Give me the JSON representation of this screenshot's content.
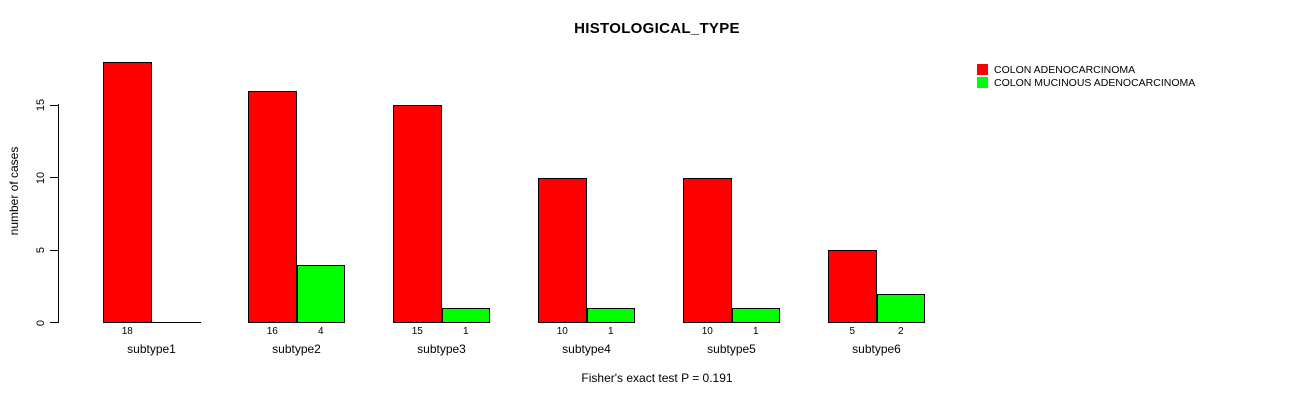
{
  "title": "HISTOLOGICAL_TYPE",
  "y_axis": {
    "label": "number of cases",
    "ticks": [
      0,
      5,
      10,
      15
    ]
  },
  "caption": "Fisher's exact test P = 0.191",
  "legend": {
    "items": [
      {
        "label": "COLON ADENOCARCINOMA",
        "color": "#ff0000"
      },
      {
        "label": "COLON MUCINOUS ADENOCARCINOMA",
        "color": "#00ff00"
      }
    ]
  },
  "chart_data": {
    "type": "bar",
    "title": "HISTOLOGICAL_TYPE",
    "categories": [
      "subtype1",
      "subtype2",
      "subtype3",
      "subtype4",
      "subtype5",
      "subtype6"
    ],
    "series": [
      {
        "name": "COLON ADENOCARCINOMA",
        "color": "#ff0000",
        "values": [
          18,
          16,
          15,
          10,
          10,
          5
        ]
      },
      {
        "name": "COLON MUCINOUS ADENOCARCINOMA",
        "color": "#00ff00",
        "values": [
          0,
          4,
          1,
          1,
          1,
          2
        ]
      }
    ],
    "xlabel": "",
    "ylabel": "number of cases",
    "ylim": [
      0,
      18
    ],
    "yticks": [
      0,
      5,
      10,
      15
    ],
    "grid": false,
    "legend_position": "top-right",
    "bar_value_labels": true,
    "bar_border_color": "#000000",
    "annotation": "Fisher's exact test P = 0.191"
  }
}
